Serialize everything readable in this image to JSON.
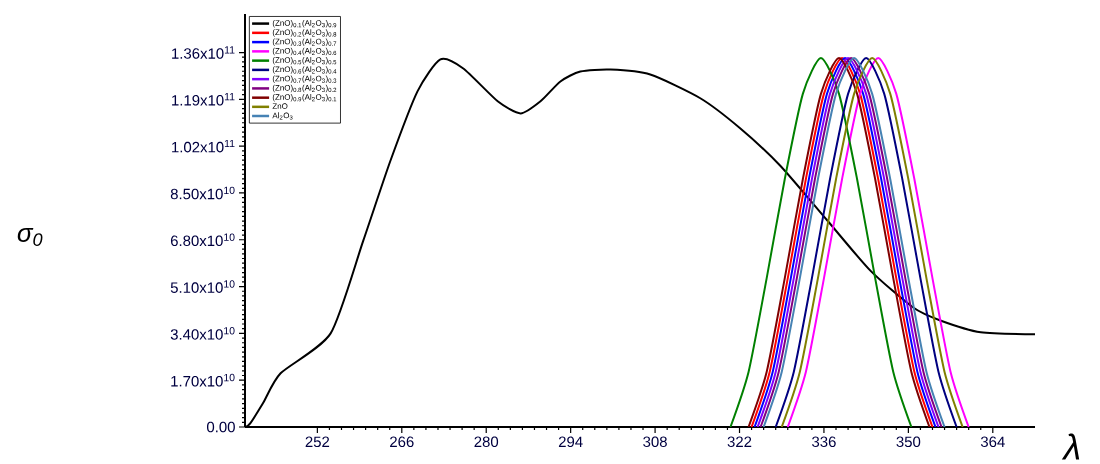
{
  "chart_data": {
    "type": "line",
    "xlabel": "λ",
    "ylabel": "σ$_{0}$",
    "xlim": [
      240,
      371
    ],
    "ylim": [
      0,
      150000000000
    ],
    "xticks": [
      252,
      266,
      280,
      294,
      308,
      322,
      336,
      350,
      364
    ],
    "yticks": [
      {
        "value": 0,
        "label": "0.00"
      },
      {
        "value": 17000000000,
        "label": "1.70x10$^{10}$"
      },
      {
        "value": 34000000000,
        "label": "3.40x10$^{10}$"
      },
      {
        "value": 51000000000,
        "label": "5.10x10$^{10}$"
      },
      {
        "value": 68000000000,
        "label": "6.80x10$^{10}$"
      },
      {
        "value": 85000000000,
        "label": "8.50x10$^{10}$"
      },
      {
        "value": 102000000000,
        "label": "1.02x10$^{11}$"
      },
      {
        "value": 119000000000,
        "label": "1.19x10$^{11}$"
      },
      {
        "value": 136000000000,
        "label": "1.36x10$^{11}$"
      }
    ],
    "legend": "top left",
    "series": [
      {
        "name": "(ZnO)$_{0.1}$(Al$_{2}$O$_{3}$)$_{0.9}$",
        "color": "#000000",
        "x": [
          240.1,
          240.9,
          243.0,
          245.9,
          254.2,
          259.6,
          264.1,
          268.6,
          272.4,
          276.2,
          281.9,
          285.7,
          289.0,
          292.3,
          295.6,
          300.6,
          307.2,
          315.5,
          322.1,
          328.8,
          336.6,
          343.7,
          350.8,
          355.3,
          362.0,
          371.0
        ],
        "values": [
          0,
          1400000000.0,
          8700000000.0,
          19500000000.0,
          34000000000.0,
          67600000000.0,
          96600000000.0,
          121900000000.0,
          133500000000.0,
          130200000000.0,
          118300000000.0,
          113900000000.0,
          118300000000.0,
          125500000000.0,
          129100000000.0,
          129800000000.0,
          128000000000.0,
          119400000000.0,
          108500000000.0,
          94800000000.0,
          74900000000.0,
          56800000000.0,
          43400000000.0,
          38700000000.0,
          34400000000.0,
          33700000000.0
        ]
      },
      {
        "name": "(ZnO)$_{0.2}$(Al$_{2}$O$_{3}$)$_{0.8}$",
        "color": "#ff0000",
        "x": [
          324,
          327,
          330,
          333,
          336,
          339,
          342,
          345,
          348,
          351,
          354
        ],
        "values": [
          0,
          20000000000.0,
          54000000000.0,
          90000000000.0,
          121000000000.0,
          134000000000.0,
          121000000000.0,
          90000000000.0,
          54000000000.0,
          20000000000.0,
          0
        ]
      },
      {
        "name": "(ZnO)$_{0.3}$(Al$_{2}$O$_{3}$)$_{0.7}$",
        "color": "#0000ff",
        "x": [
          324.5,
          327.5,
          330.5,
          333.5,
          336.5,
          339.5,
          342.5,
          345.5,
          348.5,
          351.5,
          354.5
        ],
        "values": [
          0,
          20000000000.0,
          54000000000.0,
          90000000000.0,
          121000000000.0,
          134000000000.0,
          121000000000.0,
          90000000000.0,
          54000000000.0,
          20000000000.0,
          0
        ]
      },
      {
        "name": "(ZnO)$_{0.4}$(Al$_{2}$O$_{3}$)$_{0.6}$",
        "color": "#ff00ff",
        "x": [
          330,
          333,
          336,
          339,
          342,
          345,
          348,
          351,
          354,
          357,
          360
        ],
        "values": [
          0,
          20000000000.0,
          54000000000.0,
          90000000000.0,
          121000000000.0,
          134000000000.0,
          121000000000.0,
          90000000000.0,
          54000000000.0,
          20000000000.0,
          0
        ]
      },
      {
        "name": "(ZnO)$_{0.5}$(Al$_{2}$O$_{3}$)$_{0.5}$",
        "color": "#008000",
        "x": [
          320.5,
          323.5,
          326.5,
          329.5,
          332.5,
          335.5,
          338.5,
          341.5,
          344.5,
          347.5,
          350.5
        ],
        "values": [
          0,
          20000000000.0,
          54000000000.0,
          90000000000.0,
          121000000000.0,
          134000000000.0,
          121000000000.0,
          90000000000.0,
          54000000000.0,
          20000000000.0,
          0
        ]
      },
      {
        "name": "(ZnO)$_{0.6}$(Al$_{2}$O$_{3}$)$_{0.4}$",
        "color": "#000080",
        "x": [
          328,
          331,
          334,
          337,
          340,
          343,
          346,
          349,
          352,
          355,
          358
        ],
        "values": [
          0,
          20000000000.0,
          54000000000.0,
          90000000000.0,
          121000000000.0,
          134000000000.0,
          121000000000.0,
          90000000000.0,
          54000000000.0,
          20000000000.0,
          0
        ]
      },
      {
        "name": "(ZnO)$_{0.7}$(Al$_{2}$O$_{3}$)$_{0.3}$",
        "color": "#8000ff",
        "x": [
          325,
          328,
          331,
          334,
          337,
          340,
          343,
          346,
          349,
          352,
          355
        ],
        "values": [
          0,
          20000000000.0,
          54000000000.0,
          90000000000.0,
          121000000000.0,
          134000000000.0,
          121000000000.0,
          90000000000.0,
          54000000000.0,
          20000000000.0,
          0
        ]
      },
      {
        "name": "(ZnO)$_{0.8}$(Al$_{2}$O$_{3}$)$_{0.2}$",
        "color": "#800080",
        "x": [
          325.5,
          328.5,
          331.5,
          334.5,
          337.5,
          340.5,
          343.5,
          346.5,
          349.5,
          352.5,
          355.5
        ],
        "values": [
          0,
          20000000000.0,
          54000000000.0,
          90000000000.0,
          121000000000.0,
          134000000000.0,
          121000000000.0,
          90000000000.0,
          54000000000.0,
          20000000000.0,
          0
        ]
      },
      {
        "name": "(ZnO)$_{0.9}$(Al$_{2}$O$_{3}$)$_{0.1}$",
        "color": "#800000",
        "x": [
          323.5,
          326.5,
          329.5,
          332.5,
          335.5,
          338.5,
          341.5,
          344.5,
          347.5,
          350.5,
          353.5
        ],
        "values": [
          0,
          20000000000.0,
          54000000000.0,
          90000000000.0,
          121000000000.0,
          134000000000.0,
          121000000000.0,
          90000000000.0,
          54000000000.0,
          20000000000.0,
          0
        ]
      },
      {
        "name": "ZnO",
        "color": "#808000",
        "x": [
          329,
          332,
          335,
          338,
          341,
          344,
          347,
          350,
          353,
          356,
          359
        ],
        "values": [
          0,
          20000000000.0,
          54000000000.0,
          90000000000.0,
          121000000000.0,
          134000000000.0,
          121000000000.0,
          90000000000.0,
          54000000000.0,
          20000000000.0,
          0
        ]
      },
      {
        "name": "Al$_{2}$O$_{3}$",
        "color": "#4682b4",
        "x": [
          326,
          329,
          332,
          335,
          338,
          341,
          344,
          347,
          350,
          353,
          356
        ],
        "values": [
          0,
          20000000000.0,
          54000000000.0,
          90000000000.0,
          121000000000.0,
          134000000000.0,
          121000000000.0,
          90000000000.0,
          54000000000.0,
          20000000000.0,
          0
        ]
      }
    ]
  }
}
